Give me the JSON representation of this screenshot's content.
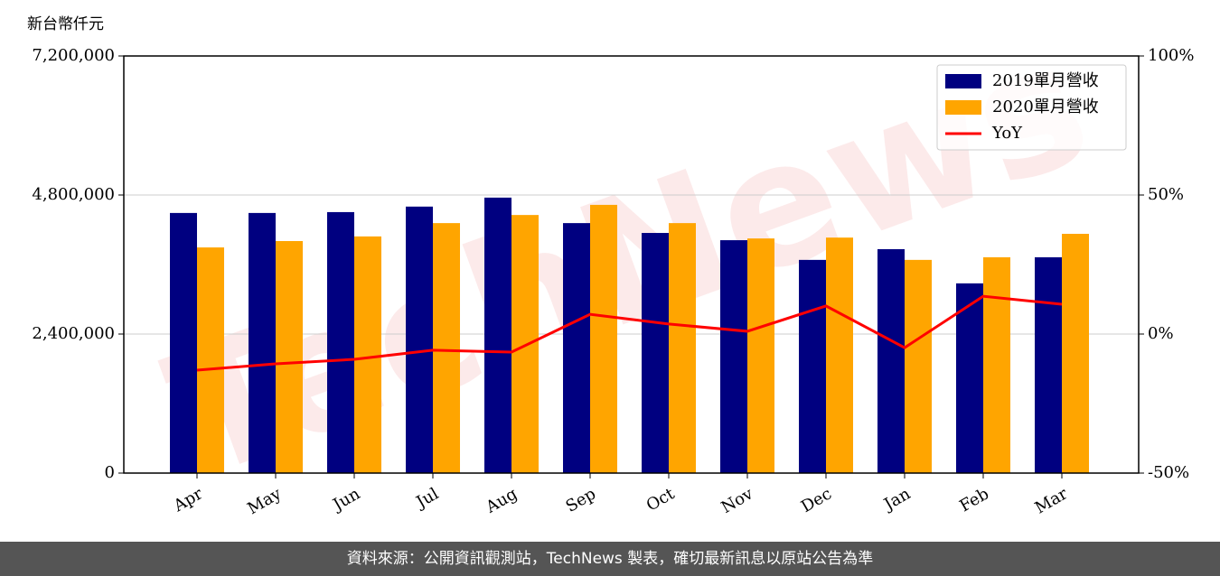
{
  "chart_data": {
    "type": "bar",
    "y_axis_title": "新台幣仟元",
    "watermark": "TechNews",
    "categories": [
      "Apr",
      "May",
      "Jun",
      "Jul",
      "Aug",
      "Sep",
      "Oct",
      "Nov",
      "Dec",
      "Jan",
      "Feb",
      "Mar"
    ],
    "series": [
      {
        "name": "2019單月營收",
        "type": "bar",
        "color": "#000080",
        "values": [
          4490000,
          4490000,
          4505000,
          4600000,
          4755000,
          4315000,
          4145000,
          4020000,
          3680000,
          3865000,
          3275000,
          3725000
        ]
      },
      {
        "name": "2020單月營收",
        "type": "bar",
        "color": "#ffa500",
        "values": [
          3895000,
          4005000,
          4085000,
          4315000,
          4455000,
          4630000,
          4315000,
          4050000,
          4065000,
          3680000,
          3725000,
          4130000
        ]
      },
      {
        "name": "YoY",
        "type": "line",
        "axis": "y2",
        "color": "#ff0000",
        "values": [
          -13,
          -10.7,
          -9.1,
          -5.8,
          -6.5,
          7.1,
          3.6,
          1.0,
          10.1,
          -4.9,
          13.6,
          10.7
        ]
      }
    ],
    "ylim": [
      0,
      7200000
    ],
    "yticks": [
      0,
      {
        "value": 2400000,
        "label": "2,400,000"
      },
      {
        "value": 4800000,
        "label": "4,800,000"
      },
      {
        "value": 7200000,
        "label": "7,200,000"
      }
    ],
    "y2lim": [
      -50,
      100
    ],
    "y2ticks": [
      {
        "value": -50,
        "label": "-50%"
      },
      {
        "value": 0,
        "label": "0%"
      },
      {
        "value": 50,
        "label": "50%"
      },
      {
        "value": 100,
        "label": "100%"
      }
    ],
    "grid": true,
    "legend": "upper right"
  },
  "footer": "資料來源：公開資訊觀測站，TechNews 製表，確切最新訊息以原站公告為準"
}
